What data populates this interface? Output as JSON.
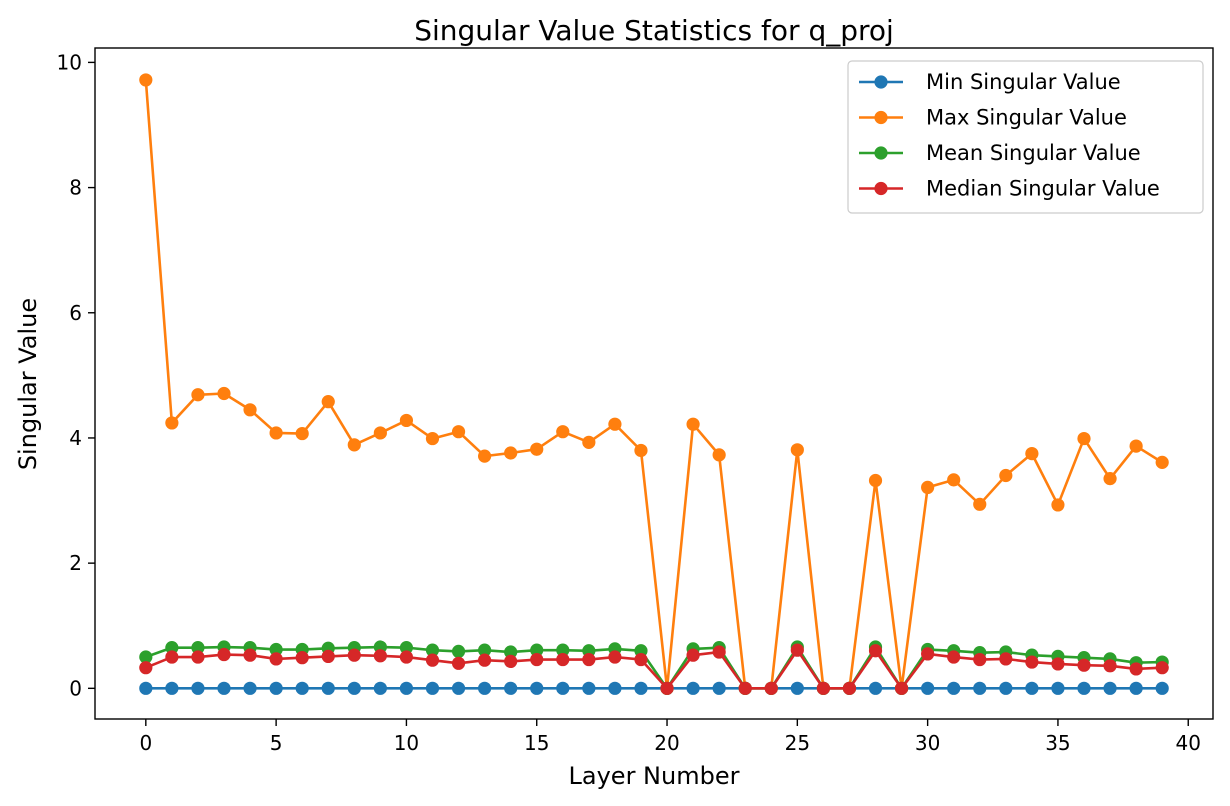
{
  "chart_data": {
    "type": "line",
    "title": "Singular Value Statistics for q_proj",
    "xlabel": "Layer Number",
    "ylabel": "Singular Value",
    "xlim": [
      -1.95,
      40.95
    ],
    "ylim": [
      -0.49,
      10.23
    ],
    "xticks": [
      0,
      5,
      10,
      15,
      20,
      25,
      30,
      35,
      40
    ],
    "yticks": [
      0,
      2,
      4,
      6,
      8,
      10
    ],
    "grid": false,
    "legend_position": "top-right",
    "x": [
      0,
      1,
      2,
      3,
      4,
      5,
      6,
      7,
      8,
      9,
      10,
      11,
      12,
      13,
      14,
      15,
      16,
      17,
      18,
      19,
      20,
      21,
      22,
      23,
      24,
      25,
      26,
      27,
      28,
      29,
      30,
      31,
      32,
      33,
      34,
      35,
      36,
      37,
      38,
      39
    ],
    "series": [
      {
        "name": "Min Singular Value",
        "color": "#1f77b4",
        "values": [
          0,
          0,
          0,
          0,
          0,
          0,
          0,
          0,
          0,
          0,
          0,
          0,
          0,
          0,
          0,
          0,
          0,
          0,
          0,
          0,
          0,
          0,
          0,
          0,
          0,
          0,
          0,
          0,
          0,
          0,
          0,
          0,
          0,
          0,
          0,
          0,
          0,
          0,
          0,
          0
        ]
      },
      {
        "name": "Max Singular Value",
        "color": "#ff7f0e",
        "values": [
          9.72,
          4.24,
          4.69,
          4.71,
          4.45,
          4.08,
          4.07,
          4.58,
          3.89,
          4.08,
          4.28,
          3.99,
          4.1,
          3.71,
          3.76,
          3.82,
          4.1,
          3.93,
          4.22,
          3.8,
          0,
          4.22,
          3.73,
          0,
          0,
          3.81,
          0,
          0,
          3.32,
          0,
          3.21,
          3.33,
          2.94,
          3.4,
          3.75,
          2.93,
          3.99,
          3.35,
          3.87,
          3.61
        ]
      },
      {
        "name": "Mean Singular Value",
        "color": "#2ca02c",
        "values": [
          0.5,
          0.65,
          0.65,
          0.66,
          0.65,
          0.62,
          0.62,
          0.64,
          0.65,
          0.66,
          0.65,
          0.61,
          0.59,
          0.61,
          0.58,
          0.61,
          0.61,
          0.6,
          0.63,
          0.6,
          0,
          0.63,
          0.65,
          0,
          0,
          0.66,
          0,
          0,
          0.66,
          0,
          0.62,
          0.6,
          0.57,
          0.58,
          0.53,
          0.51,
          0.49,
          0.47,
          0.41,
          0.42
        ]
      },
      {
        "name": "Median Singular Value",
        "color": "#d62728",
        "values": [
          0.33,
          0.5,
          0.5,
          0.54,
          0.53,
          0.47,
          0.49,
          0.51,
          0.53,
          0.52,
          0.5,
          0.45,
          0.4,
          0.45,
          0.43,
          0.46,
          0.46,
          0.46,
          0.5,
          0.46,
          0,
          0.53,
          0.58,
          0,
          0,
          0.61,
          0,
          0,
          0.6,
          0,
          0.55,
          0.5,
          0.46,
          0.47,
          0.42,
          0.39,
          0.37,
          0.36,
          0.31,
          0.33
        ]
      }
    ]
  }
}
